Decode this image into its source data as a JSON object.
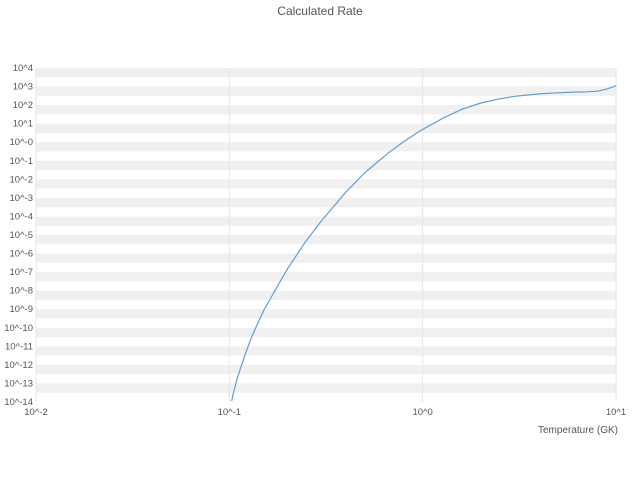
{
  "chart_data": {
    "type": "line",
    "title": "Calculated Rate",
    "xlabel": "Temperature (GK)",
    "ylabel": "",
    "x_scale": "log",
    "y_scale": "log",
    "xlim_log": [
      -2,
      1
    ],
    "ylim_log": [
      -14,
      4
    ],
    "grid": true,
    "legend": "none",
    "x_tick_labels": [
      "10^-2",
      "10^-1",
      "10^0",
      "10^1"
    ],
    "x_tick_exps": [
      -2,
      -1,
      0,
      1
    ],
    "y_tick_labels": [
      "10^4",
      "10^3",
      "10^2",
      "10^1",
      "10^-0",
      "10^-1",
      "10^-2",
      "10^-3",
      "10^-4",
      "10^-5",
      "10^-6",
      "10^-7",
      "10^-8",
      "10^-9",
      "10^-10",
      "10^-11",
      "10^-12",
      "10^-13",
      "10^-14"
    ],
    "y_tick_exps": [
      4,
      3,
      2,
      1,
      0,
      -1,
      -2,
      -3,
      -4,
      -5,
      -6,
      -7,
      -8,
      -9,
      -10,
      -11,
      -12,
      -13,
      -14
    ],
    "colors": {
      "line": "#619ed6",
      "band": "#f0f0f0",
      "grid": "#e6e6e6",
      "text": "#555555",
      "background": "#ffffff"
    },
    "series": [
      {
        "name": "calculated-rate",
        "points": [
          [
            0.103,
            1.2e-14
          ],
          [
            0.105,
            3e-14
          ],
          [
            0.11,
            2e-13
          ],
          [
            0.12,
            3e-12
          ],
          [
            0.13,
            3e-11
          ],
          [
            0.15,
            8e-10
          ],
          [
            0.17,
            8e-09
          ],
          [
            0.2,
            1.5e-07
          ],
          [
            0.25,
            5e-06
          ],
          [
            0.3,
            6e-05
          ],
          [
            0.4,
            0.002
          ],
          [
            0.5,
            0.022
          ],
          [
            0.65,
            0.22
          ],
          [
            0.8,
            1.1
          ],
          [
            1.0,
            5.0
          ],
          [
            1.3,
            22
          ],
          [
            1.6,
            60
          ],
          [
            2.0,
            130
          ],
          [
            2.5,
            220
          ],
          [
            3.0,
            300
          ],
          [
            4.0,
            400
          ],
          [
            5.0,
            460
          ],
          [
            6.0,
            500
          ],
          [
            7.0,
            520
          ],
          [
            8.0,
            560
          ],
          [
            9.0,
            750
          ],
          [
            10.0,
            1100
          ]
        ]
      }
    ]
  }
}
